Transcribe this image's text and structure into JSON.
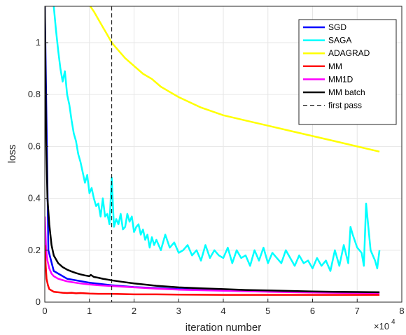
{
  "chart_data": {
    "type": "line",
    "xlabel": "iteration number",
    "ylabel": "loss",
    "x_multiplier": "×10",
    "x_exponent": "4",
    "xlim": [
      0,
      80000
    ],
    "ylim": [
      0,
      1.14
    ],
    "x_tick_values": [
      0,
      10000,
      20000,
      30000,
      40000,
      50000,
      60000,
      70000,
      80000
    ],
    "x_tick_labels": [
      "0",
      "1",
      "2",
      "3",
      "4",
      "5",
      "6",
      "7",
      "8"
    ],
    "y_tick_values": [
      0,
      0.2,
      0.4,
      0.6,
      0.8,
      1.0
    ],
    "y_tick_labels": [
      "0",
      "0.2",
      "0.4",
      "0.6",
      "0.8",
      "1"
    ],
    "grid": true,
    "legend_position": "top-right",
    "first_pass_x": 15000,
    "series": [
      {
        "name": "SGD",
        "color": "#0000ff",
        "x": [
          0,
          800,
          2000,
          5000,
          10000,
          15000,
          20000,
          30000,
          40000,
          50000,
          60000,
          75000
        ],
        "y": [
          1.15,
          0.2,
          0.12,
          0.09,
          0.075,
          0.065,
          0.058,
          0.05,
          0.045,
          0.042,
          0.04,
          0.037
        ]
      },
      {
        "name": "SAGA",
        "color": "#00ffff",
        "x": [
          2000,
          2500,
          3000,
          3500,
          4000,
          4500,
          5000,
          5500,
          6000,
          6500,
          7000,
          7500,
          8000,
          8500,
          9000,
          9500,
          10000,
          10500,
          11000,
          11500,
          12000,
          12500,
          13000,
          13500,
          14000,
          14500,
          15000,
          15500,
          16000,
          16500,
          17000,
          17500,
          18000,
          18500,
          19000,
          19500,
          20000,
          20500,
          21000,
          21500,
          22000,
          22500,
          23000,
          23500,
          24000,
          24500,
          25000,
          26000,
          27000,
          28000,
          29000,
          30000,
          31000,
          32000,
          33000,
          34000,
          35000,
          36000,
          37000,
          38000,
          39000,
          40000,
          41000,
          42000,
          43000,
          44000,
          45000,
          46000,
          47000,
          48000,
          49000,
          50000,
          51000,
          52000,
          53000,
          54000,
          55000,
          56000,
          57000,
          58000,
          59000,
          60000,
          61000,
          62000,
          63000,
          64000,
          65000,
          66000,
          67000,
          68000,
          68500,
          69000,
          70000,
          71000,
          71500,
          72000,
          73000,
          74000,
          74500,
          75000
        ],
        "y": [
          1.14,
          1.05,
          0.97,
          0.9,
          0.85,
          0.89,
          0.8,
          0.76,
          0.7,
          0.65,
          0.62,
          0.57,
          0.54,
          0.5,
          0.46,
          0.49,
          0.42,
          0.44,
          0.4,
          0.37,
          0.38,
          0.33,
          0.4,
          0.33,
          0.34,
          0.3,
          0.48,
          0.29,
          0.32,
          0.3,
          0.34,
          0.28,
          0.29,
          0.34,
          0.31,
          0.33,
          0.27,
          0.29,
          0.3,
          0.26,
          0.28,
          0.24,
          0.26,
          0.21,
          0.25,
          0.22,
          0.24,
          0.2,
          0.26,
          0.21,
          0.23,
          0.19,
          0.2,
          0.22,
          0.18,
          0.2,
          0.16,
          0.22,
          0.17,
          0.2,
          0.18,
          0.17,
          0.21,
          0.15,
          0.2,
          0.17,
          0.18,
          0.14,
          0.2,
          0.16,
          0.21,
          0.15,
          0.19,
          0.17,
          0.15,
          0.2,
          0.17,
          0.14,
          0.18,
          0.15,
          0.16,
          0.13,
          0.17,
          0.14,
          0.16,
          0.12,
          0.2,
          0.14,
          0.22,
          0.15,
          0.29,
          0.26,
          0.21,
          0.19,
          0.14,
          0.38,
          0.2,
          0.16,
          0.13,
          0.2
        ]
      },
      {
        "name": "ADAGRAD",
        "color": "#ffff00",
        "x": [
          10200,
          11000,
          12000,
          13000,
          14000,
          15000,
          16000,
          17000,
          18000,
          20000,
          22000,
          24000,
          26000,
          28000,
          30000,
          35000,
          40000,
          45000,
          50000,
          55000,
          60000,
          65000,
          70000,
          75000
        ],
        "y": [
          1.14,
          1.12,
          1.09,
          1.06,
          1.03,
          1.0,
          0.98,
          0.96,
          0.94,
          0.91,
          0.88,
          0.86,
          0.83,
          0.81,
          0.79,
          0.75,
          0.72,
          0.7,
          0.68,
          0.66,
          0.64,
          0.62,
          0.6,
          0.58
        ]
      },
      {
        "name": "MM",
        "color": "#ff0000",
        "x": [
          0,
          200,
          400,
          700,
          1000,
          1500,
          2000,
          3000,
          4000,
          5000,
          6000,
          7000,
          8000,
          10000,
          12000,
          15000,
          20000,
          25000,
          30000,
          40000,
          50000,
          60000,
          70000,
          75000
        ],
        "y": [
          0.22,
          0.14,
          0.09,
          0.065,
          0.05,
          0.045,
          0.04,
          0.038,
          0.036,
          0.035,
          0.036,
          0.034,
          0.035,
          0.033,
          0.032,
          0.032,
          0.03,
          0.03,
          0.029,
          0.028,
          0.028,
          0.028,
          0.028,
          0.028
        ]
      },
      {
        "name": "MM1D",
        "color": "#ff00ff",
        "x": [
          0,
          300,
          600,
          1000,
          1500,
          2000,
          3000,
          4000,
          5000,
          6000,
          8000,
          10000,
          12000,
          15000,
          20000,
          25000,
          30000,
          40000,
          50000,
          60000,
          70000,
          75000
        ],
        "y": [
          0.33,
          0.2,
          0.16,
          0.13,
          0.11,
          0.1,
          0.09,
          0.085,
          0.08,
          0.077,
          0.072,
          0.068,
          0.065,
          0.062,
          0.057,
          0.052,
          0.048,
          0.044,
          0.04,
          0.037,
          0.035,
          0.034
        ]
      },
      {
        "name": "MM batch",
        "color": "#000000",
        "x": [
          0,
          300,
          600,
          1000,
          1500,
          2000,
          3000,
          4000,
          5000,
          6000,
          7000,
          8000,
          9000,
          10000,
          10300,
          11000,
          12000,
          13000,
          14000,
          15000,
          17000,
          20000,
          25000,
          30000,
          35000,
          40000,
          45000,
          50000,
          55000,
          60000,
          65000,
          70000,
          75000
        ],
        "y": [
          1.15,
          0.62,
          0.4,
          0.3,
          0.22,
          0.18,
          0.15,
          0.135,
          0.125,
          0.118,
          0.112,
          0.107,
          0.103,
          0.1,
          0.105,
          0.097,
          0.094,
          0.09,
          0.087,
          0.084,
          0.079,
          0.072,
          0.063,
          0.057,
          0.053,
          0.05,
          0.047,
          0.045,
          0.043,
          0.041,
          0.04,
          0.039,
          0.038
        ]
      },
      {
        "name": "first pass",
        "color": "#000000",
        "style": "dashed"
      }
    ]
  }
}
